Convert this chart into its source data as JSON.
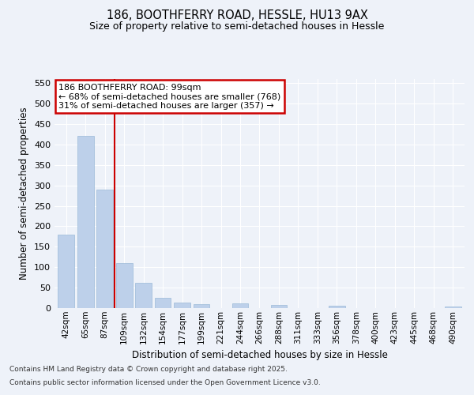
{
  "title1": "186, BOOTHFERRY ROAD, HESSLE, HU13 9AX",
  "title2": "Size of property relative to semi-detached houses in Hessle",
  "xlabel": "Distribution of semi-detached houses by size in Hessle",
  "ylabel": "Number of semi-detached properties",
  "categories": [
    "42sqm",
    "65sqm",
    "87sqm",
    "109sqm",
    "132sqm",
    "154sqm",
    "177sqm",
    "199sqm",
    "221sqm",
    "244sqm",
    "266sqm",
    "288sqm",
    "311sqm",
    "333sqm",
    "356sqm",
    "378sqm",
    "400sqm",
    "423sqm",
    "445sqm",
    "468sqm",
    "490sqm"
  ],
  "values": [
    180,
    421,
    289,
    111,
    61,
    26,
    14,
    10,
    0,
    12,
    0,
    7,
    0,
    0,
    5,
    0,
    0,
    0,
    0,
    0,
    4
  ],
  "bar_color": "#bdd0ea",
  "bar_edge_color": "#9bbad8",
  "vline_x": 2.5,
  "vline_color": "#cc0000",
  "annotation_text": "186 BOOTHFERRY ROAD: 99sqm\n← 68% of semi-detached houses are smaller (768)\n31% of semi-detached houses are larger (357) →",
  "annotation_box_color": "#cc0000",
  "ylim": [
    0,
    560
  ],
  "yticks": [
    0,
    50,
    100,
    150,
    200,
    250,
    300,
    350,
    400,
    450,
    500,
    550
  ],
  "bg_color": "#eef2f9",
  "grid_color": "#ffffff",
  "footer1": "Contains HM Land Registry data © Crown copyright and database right 2025.",
  "footer2": "Contains public sector information licensed under the Open Government Licence v3.0."
}
